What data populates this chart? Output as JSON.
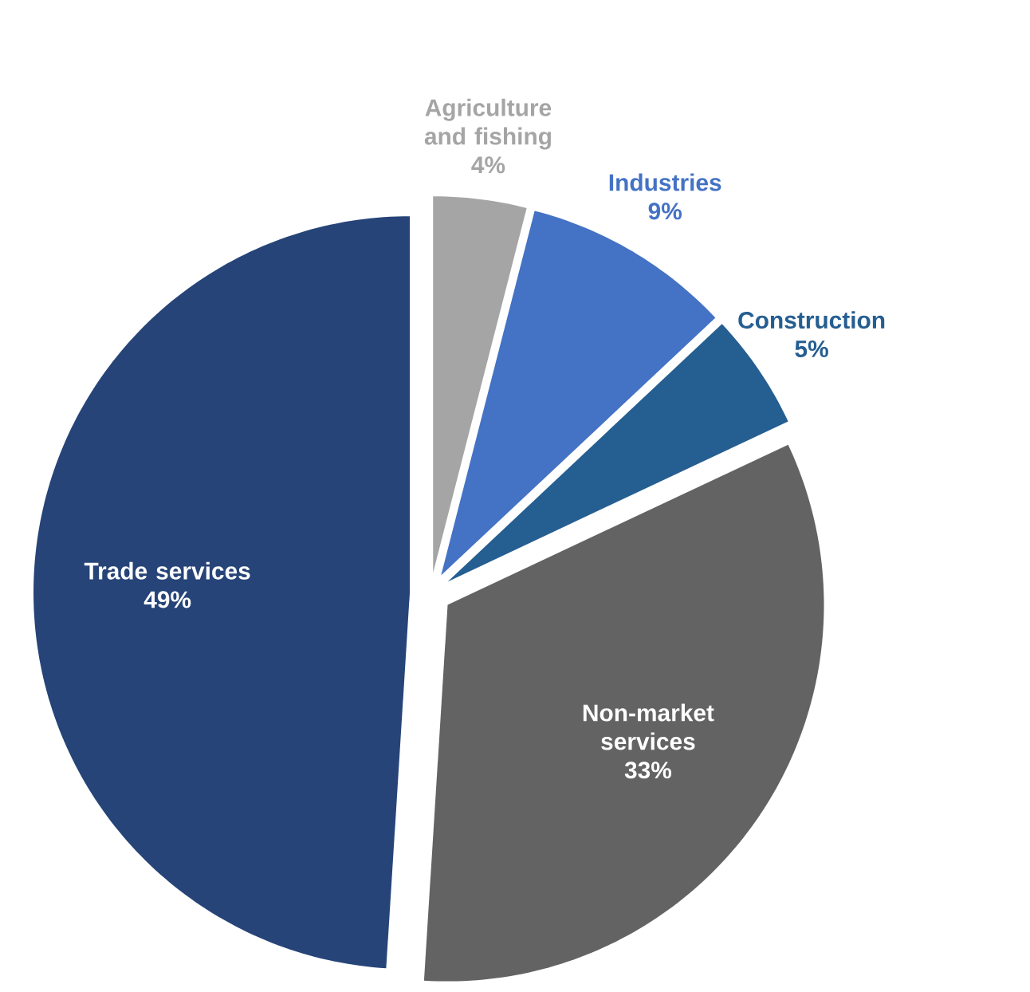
{
  "chart_data": {
    "type": "pie",
    "categories": [
      "Agriculture and fishing",
      "Industries",
      "Construction",
      "Non-market services",
      "Trade services"
    ],
    "values": [
      4,
      9,
      5,
      33,
      49
    ],
    "value_labels": [
      "4%",
      "9%",
      "5%",
      "33%",
      "49%"
    ],
    "colors": [
      "#a5a5a5",
      "#4472c4",
      "#255e91",
      "#636363",
      "#264478"
    ]
  }
}
